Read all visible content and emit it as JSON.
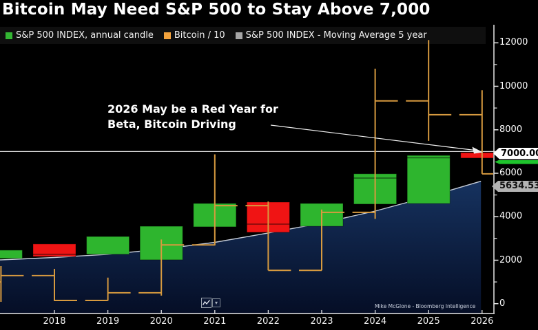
{
  "title": "Bitcoin May Need S&P 500 to Stay Above 7,000",
  "legend": {
    "items": [
      {
        "label": "S&P 500 INDEX, annual candle",
        "color": "#33b533"
      },
      {
        "label": "Bitcoin / 10",
        "color": "#f2a23c"
      },
      {
        "label": "S&P 500 INDEX - Moving Average 5 year",
        "color": "#a6a6a6"
      }
    ]
  },
  "annotation": {
    "line1": "2026 May be a Red Year for",
    "line2": "Beta, Bitcoin Driving"
  },
  "price_labels": {
    "last_price": "7000.00",
    "ma_last": "5634.53"
  },
  "watermark": "Mike McGlone - Bloomberg Intelligence",
  "toolbar": {
    "caret": "▾"
  },
  "chart_data": {
    "type": "candlestick + ohlc-bars + moving-average area line",
    "title": "Bitcoin May Need S&P 500 to Stay Above 7,000",
    "ylim": [
      0,
      12000
    ],
    "y_axis": {
      "major_ticks": [
        0,
        2000,
        4000,
        6000,
        8000,
        10000,
        12000
      ],
      "minor_ticks": [
        1000,
        3000,
        5000,
        7000,
        9000,
        11000
      ],
      "side": "right"
    },
    "x_axis": {
      "tick_years": [
        2018,
        2019,
        2020,
        2021,
        2022,
        2023,
        2024,
        2025,
        2026
      ]
    },
    "grid": false,
    "legend_position": "top",
    "series": {
      "sp500_annual_candles": [
        {
          "year": 2017,
          "open": 2080,
          "close": 2460,
          "direction": "up"
        },
        {
          "year": 2018,
          "open": 2745,
          "close": 2170,
          "direction": "down",
          "inner_line": 2270
        },
        {
          "year": 2019,
          "open": 2270,
          "close": 3090,
          "direction": "up"
        },
        {
          "year": 2020,
          "open": 2015,
          "close": 3560,
          "direction": "up"
        },
        {
          "year": 2021,
          "open": 3535,
          "close": 4610,
          "direction": "up"
        },
        {
          "year": 2022,
          "open": 4670,
          "close": 3280,
          "direction": "down",
          "inner_line": 3660
        },
        {
          "year": 2023,
          "open": 3560,
          "close": 4610,
          "direction": "up"
        },
        {
          "year": 2024,
          "open": 4580,
          "close": 5975,
          "direction": "up",
          "inner_line": 5780
        },
        {
          "year": 2025,
          "open": 4610,
          "close": 6820,
          "direction": "up",
          "inner_line": 6710
        },
        {
          "year": 2026,
          "open": 6950,
          "close": 6700,
          "direction": "down"
        }
      ],
      "bitcoin_div10_bars": [
        {
          "year": 2017,
          "open": 1000,
          "high": 1730,
          "low": 85,
          "close": 1290
        },
        {
          "year": 2018,
          "open": 1290,
          "high": 1600,
          "low": 120,
          "close": 150
        },
        {
          "year": 2019,
          "open": 150,
          "high": 1200,
          "low": 140,
          "close": 500
        },
        {
          "year": 2020,
          "open": 500,
          "high": 2950,
          "low": 370,
          "close": 2700
        },
        {
          "year": 2021,
          "open": 2700,
          "high": 6870,
          "low": 2680,
          "close": 4510
        },
        {
          "year": 2022,
          "open": 4510,
          "high": 4700,
          "low": 1530,
          "close": 1530
        },
        {
          "year": 2023,
          "open": 1530,
          "high": 4330,
          "low": 1530,
          "close": 4200
        },
        {
          "year": 2024,
          "open": 4200,
          "high": 10810,
          "low": 3900,
          "close": 9330
        },
        {
          "year": 2025,
          "open": 9330,
          "high": 12130,
          "low": 7490,
          "close": 8690
        },
        {
          "year": 2026,
          "open": 8690,
          "high": 9820,
          "low": 5970,
          "close": 5970
        }
      ],
      "ma_5yr_points": [
        [
          2017,
          2015
        ],
        [
          2018,
          2125
        ],
        [
          2019,
          2270
        ],
        [
          2020,
          2505
        ],
        [
          2021,
          2820
        ],
        [
          2022,
          3250
        ],
        [
          2023,
          3710
        ],
        [
          2024,
          4260
        ],
        [
          2025,
          4925
        ],
        [
          2025.98,
          5634.53
        ]
      ],
      "hline": {
        "value": 7000,
        "label": "7000.00"
      },
      "ma_last": {
        "value": 5634.53,
        "label": "5634.53"
      }
    },
    "colors": {
      "up": "#2eb52e",
      "down": "#f01414",
      "bitcoin": "#d79a3f",
      "ma_line": "#c6cdd8",
      "area_top": "#16325f",
      "area_bottom": "#050e26",
      "hline": "#e0e0e0",
      "axis": "#e8e8e8",
      "inner_line": "rgba(0,0,0,0.5)"
    }
  }
}
